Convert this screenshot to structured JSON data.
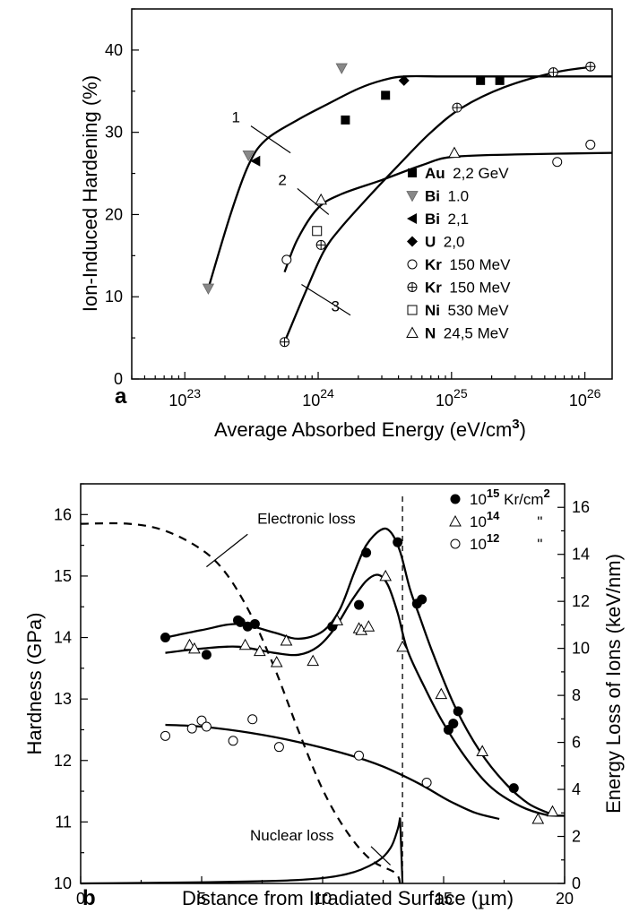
{
  "chart_data": [
    {
      "panel": "a",
      "type": "scatter",
      "xlabel": "Average Absorbed Energy (eV/cm",
      "xlabel_sup": "3",
      "xlabel_end": ")",
      "ylabel": "Ion-Induced Hardening (%)",
      "x_scale": "log",
      "xlim": [
        4e+22,
        1.6e+26
      ],
      "ylim": [
        0,
        45
      ],
      "x_ticks": [
        {
          "value": 1e+23,
          "base": "10",
          "exp": "23"
        },
        {
          "value": 1e+24,
          "base": "10",
          "exp": "24"
        },
        {
          "value": 1e+25,
          "base": "10",
          "exp": "25"
        },
        {
          "value": 1e+26,
          "base": "10",
          "exp": "26"
        }
      ],
      "y_ticks": [
        0,
        10,
        20,
        30,
        40
      ],
      "legend_position": "bottom-right",
      "series": [
        {
          "name": "Au",
          "detail": "2,2 GeV",
          "marker": "square-filled",
          "points": [
            [
              1.6e+24,
              31.5
            ],
            [
              3.2e+24,
              34.5
            ],
            [
              1.65e+25,
              36.3
            ],
            [
              2.3e+25,
              36.3
            ]
          ]
        },
        {
          "name": "Bi",
          "detail": "1.0",
          "marker": "triangle-down-gray",
          "points": [
            [
              1.5e+23,
              11
            ],
            [
              3e+23,
              27.2
            ],
            [
              1.5e+24,
              37.8
            ]
          ]
        },
        {
          "name": "Bi",
          "detail": "2,1",
          "marker": "triangle-left-filled",
          "points": [
            [
              3.4e+23,
              26.5
            ]
          ]
        },
        {
          "name": "U",
          "detail": "2,0",
          "marker": "diamond-filled",
          "points": [
            [
              4.4e+24,
              36.3
            ]
          ]
        },
        {
          "name": "Kr",
          "detail": "150 MeV",
          "marker": "circle-open",
          "points": [
            [
              5.8e+23,
              14.5
            ],
            [
              6.2e+25,
              26.4
            ],
            [
              1.1e+26,
              28.5
            ]
          ]
        },
        {
          "name": "Kr",
          "detail": "150 MeV",
          "marker": "circle-plus",
          "points": [
            [
              5.6e+23,
              4.5
            ],
            [
              1.05e+24,
              16.3
            ],
            [
              1.1e+25,
              33
            ],
            [
              5.8e+25,
              37.3
            ],
            [
              1.1e+26,
              38
            ]
          ]
        },
        {
          "name": "Ni",
          "detail": "530 MeV",
          "marker": "square-open",
          "points": [
            [
              9.8e+23,
              18
            ]
          ]
        },
        {
          "name": "N",
          "detail": "24,5 MeV",
          "marker": "triangle-up-open",
          "points": [
            [
              1.05e+24,
              21.8
            ],
            [
              1.05e+25,
              27.5
            ]
          ]
        }
      ],
      "curves": [
        {
          "label": "1",
          "points": [
            [
              1.5e+23,
              11
            ],
            [
              2.2e+23,
              20
            ],
            [
              3e+23,
              26
            ],
            [
              4e+23,
              29
            ],
            [
              7e+23,
              31.5
            ],
            [
              1.2e+24,
              33.5
            ],
            [
              2e+24,
              35.3
            ],
            [
              3e+24,
              36.3
            ],
            [
              4.5e+24,
              36.8
            ],
            [
              1e+25,
              36.8
            ],
            [
              1.6e+26,
              36.8
            ]
          ]
        },
        {
          "label": "2",
          "points": [
            [
              5.6e+23,
              13
            ],
            [
              7e+23,
              17
            ],
            [
              1e+24,
              20.8
            ],
            [
              1.5e+24,
              22.5
            ],
            [
              3e+24,
              24.2
            ],
            [
              6e+24,
              26
            ],
            [
              1e+25,
              27
            ],
            [
              3e+25,
              27.3
            ],
            [
              1.6e+26,
              27.5
            ]
          ]
        },
        {
          "label": "3",
          "points": [
            [
              5.6e+23,
              4.5
            ],
            [
              8e+23,
              10.5
            ],
            [
              1.1e+24,
              15.5
            ],
            [
              1.5e+24,
              18.5
            ],
            [
              2.5e+24,
              22.5
            ],
            [
              4e+24,
              26
            ],
            [
              7e+24,
              30
            ],
            [
              1.2e+25,
              33
            ],
            [
              2.5e+25,
              35.5
            ],
            [
              6e+25,
              37.3
            ],
            [
              1.2e+26,
              38
            ]
          ]
        }
      ],
      "curve_labels": [
        {
          "text": "1",
          "x": 2.6e+23,
          "y": 31.2,
          "leader_to": [
            6.2e+23,
            27.5
          ]
        },
        {
          "text": "2",
          "x": 5.8e+23,
          "y": 23.6,
          "leader_to": [
            1.2e+24,
            20
          ]
        },
        {
          "text": "3",
          "x": 1.45e+24,
          "y": 8.2,
          "leader_to": [
            7.5e+23,
            11.5
          ]
        }
      ],
      "panel_letter": "a"
    },
    {
      "panel": "b",
      "type": "scatter",
      "xlabel": "Distance from Irradiated Surface (",
      "xlabel_mu": "µ",
      "xlabel_end": "m)",
      "ylabel": "Hardness (GPa)",
      "y2label": "Energy Loss of Ions (keV/nm)",
      "xlim": [
        0,
        20
      ],
      "ylim": [
        10,
        16.5
      ],
      "y2lim": [
        0,
        17
      ],
      "x_ticks": [
        0,
        5,
        10,
        15,
        20
      ],
      "y_ticks": [
        10,
        11,
        12,
        13,
        14,
        15,
        16
      ],
      "y2_ticks": [
        0,
        2,
        4,
        6,
        8,
        10,
        12,
        14,
        16
      ],
      "legend_position": "top-right",
      "series": [
        {
          "name_base": "10",
          "name_exp": "15",
          "name_suffix": " Kr/cm",
          "name_sup": "2",
          "marker": "circle-filled",
          "points": [
            [
              3.5,
              14.0
            ],
            [
              5.2,
              13.72
            ],
            [
              6.5,
              14.28
            ],
            [
              6.6,
              14.25
            ],
            [
              6.9,
              14.18
            ],
            [
              7.2,
              14.22
            ],
            [
              10.4,
              14.18
            ],
            [
              11.5,
              14.53
            ],
            [
              11.8,
              15.38
            ],
            [
              13.1,
              15.55
            ],
            [
              13.9,
              14.55
            ],
            [
              14.1,
              14.62
            ],
            [
              15.2,
              12.5
            ],
            [
              15.4,
              12.6
            ],
            [
              15.6,
              12.8
            ],
            [
              17.9,
              11.55
            ]
          ]
        },
        {
          "name_base": "10",
          "name_exp": "14",
          "name_suffix": "",
          "name_sup": "",
          "ditto": "\"",
          "marker": "triangle-up-open",
          "points": [
            [
              4.5,
              13.88
            ],
            [
              4.7,
              13.82
            ],
            [
              6.8,
              13.88
            ],
            [
              7.4,
              13.78
            ],
            [
              8.1,
              13.6
            ],
            [
              8.5,
              13.95
            ],
            [
              9.6,
              13.62
            ],
            [
              10.6,
              14.28
            ],
            [
              11.5,
              14.15
            ],
            [
              11.6,
              14.12
            ],
            [
              11.9,
              14.18
            ],
            [
              12.6,
              15.0
            ],
            [
              13.3,
              13.85
            ],
            [
              14.9,
              13.08
            ],
            [
              16.6,
              12.15
            ],
            [
              18.9,
              11.05
            ],
            [
              19.5,
              11.17
            ]
          ]
        },
        {
          "name_base": "10",
          "name_exp": "12",
          "name_suffix": "",
          "name_sup": "",
          "ditto": "\"",
          "marker": "circle-open",
          "points": [
            [
              3.5,
              12.4
            ],
            [
              4.6,
              12.52
            ],
            [
              5.0,
              12.65
            ],
            [
              5.2,
              12.55
            ],
            [
              6.3,
              12.32
            ],
            [
              7.1,
              12.67
            ],
            [
              8.2,
              12.22
            ],
            [
              11.5,
              12.08
            ],
            [
              14.3,
              11.64
            ]
          ]
        }
      ],
      "curves": [
        {
          "name": "fit-1e15",
          "points": [
            [
              3.5,
              14.0
            ],
            [
              5,
              14.12
            ],
            [
              6.5,
              14.22
            ],
            [
              8,
              14.08
            ],
            [
              9,
              13.98
            ],
            [
              10,
              14.1
            ],
            [
              10.7,
              14.45
            ],
            [
              11.3,
              15.05
            ],
            [
              11.8,
              15.5
            ],
            [
              12.4,
              15.75
            ],
            [
              12.8,
              15.72
            ],
            [
              13.2,
              15.4
            ],
            [
              13.6,
              14.8
            ],
            [
              14.0,
              14.35
            ],
            [
              14.6,
              13.7
            ],
            [
              15.5,
              12.85
            ],
            [
              16.5,
              12.15
            ],
            [
              17.5,
              11.65
            ],
            [
              18.5,
              11.3
            ],
            [
              19.5,
              11.12
            ]
          ]
        },
        {
          "name": "fit-1e14",
          "points": [
            [
              3.5,
              13.75
            ],
            [
              5,
              13.82
            ],
            [
              6.5,
              13.85
            ],
            [
              8,
              13.75
            ],
            [
              9,
              13.72
            ],
            [
              9.8,
              13.85
            ],
            [
              10.5,
              14.15
            ],
            [
              11.2,
              14.6
            ],
            [
              11.8,
              14.92
            ],
            [
              12.3,
              15.02
            ],
            [
              12.7,
              14.85
            ],
            [
              13.1,
              14.4
            ],
            [
              13.5,
              13.8
            ],
            [
              14.2,
              13.2
            ],
            [
              15.0,
              12.6
            ],
            [
              16.0,
              12.0
            ],
            [
              17.0,
              11.55
            ],
            [
              18.2,
              11.25
            ],
            [
              19.2,
              11.12
            ],
            [
              20,
              11.1
            ]
          ]
        },
        {
          "name": "fit-1e12",
          "points": [
            [
              3.5,
              12.58
            ],
            [
              5,
              12.55
            ],
            [
              7,
              12.45
            ],
            [
              9,
              12.3
            ],
            [
              11,
              12.1
            ],
            [
              12.5,
              11.9
            ],
            [
              14,
              11.62
            ],
            [
              15.2,
              11.35
            ],
            [
              16.3,
              11.15
            ],
            [
              17.3,
              11.05
            ]
          ]
        }
      ],
      "electronic_loss_keV_nm": [
        [
          0,
          15.3
        ],
        [
          2,
          15.3
        ],
        [
          3.5,
          15.0
        ],
        [
          5,
          14.2
        ],
        [
          6,
          13.2
        ],
        [
          7,
          11.5
        ],
        [
          8,
          9.2
        ],
        [
          9,
          6.5
        ],
        [
          10,
          4.0
        ],
        [
          11,
          2.2
        ],
        [
          12,
          1.0
        ],
        [
          13,
          0.45
        ],
        [
          13.2,
          0
        ]
      ],
      "nuclear_loss_keV_nm": [
        [
          0,
          0
        ],
        [
          5,
          0.05
        ],
        [
          9,
          0.15
        ],
        [
          11,
          0.4
        ],
        [
          12.2,
          0.9
        ],
        [
          12.8,
          1.5
        ],
        [
          13.1,
          2.3
        ],
        [
          13.2,
          2.8
        ],
        [
          13.3,
          0
        ]
      ],
      "range_line_x": 13.3,
      "annotations": [
        {
          "text": "Electronic loss",
          "x": 7.3,
          "y": 15.85,
          "leader_from": [
            6.9,
            15.68
          ],
          "leader_to": [
            5.2,
            15.15
          ]
        },
        {
          "text": "Nuclear loss",
          "x": 7.0,
          "y": 10.7,
          "leader_from": [
            12.0,
            10.6
          ],
          "leader_to": [
            12.8,
            10.3
          ]
        }
      ],
      "panel_letter": "b"
    }
  ]
}
